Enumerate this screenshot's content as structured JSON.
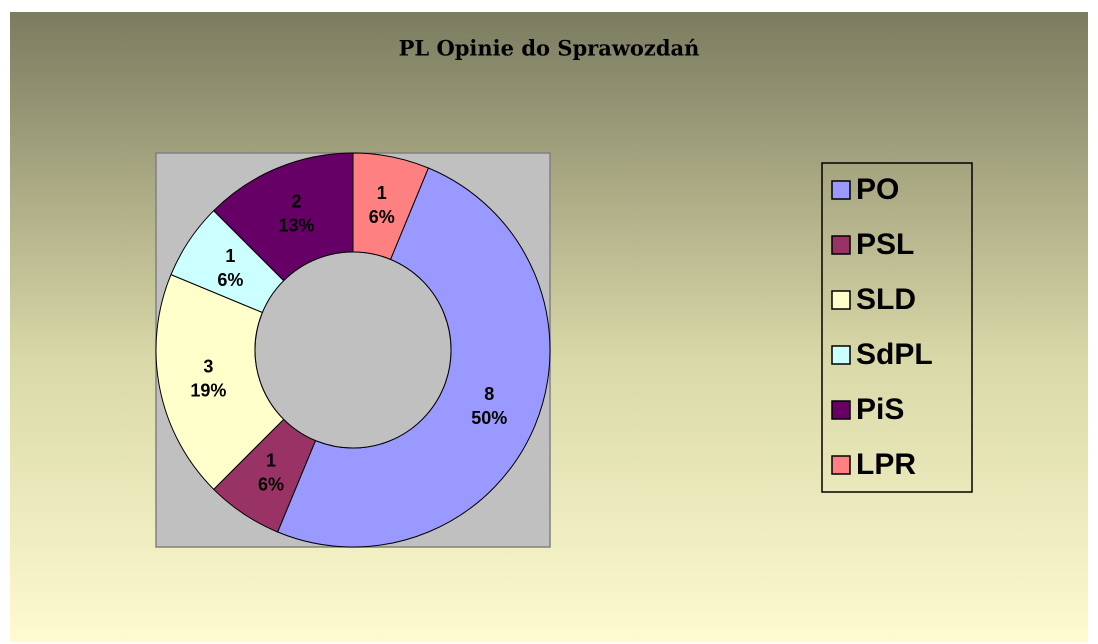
{
  "chart_data": {
    "type": "donut",
    "title": "PL Opinie do Sprawozdań",
    "categories": [
      "PO",
      "PSL",
      "SLD",
      "SdPL",
      "PiS",
      "LPR"
    ],
    "values": [
      8,
      1,
      3,
      1,
      2,
      1
    ],
    "percent_labels": [
      "50%",
      "6%",
      "19%",
      "6%",
      "13%",
      "6%"
    ],
    "colors": [
      "#9999ff",
      "#993366",
      "#ffffcc",
      "#ccffff",
      "#660066",
      "#ff8080"
    ],
    "legend": "right"
  }
}
